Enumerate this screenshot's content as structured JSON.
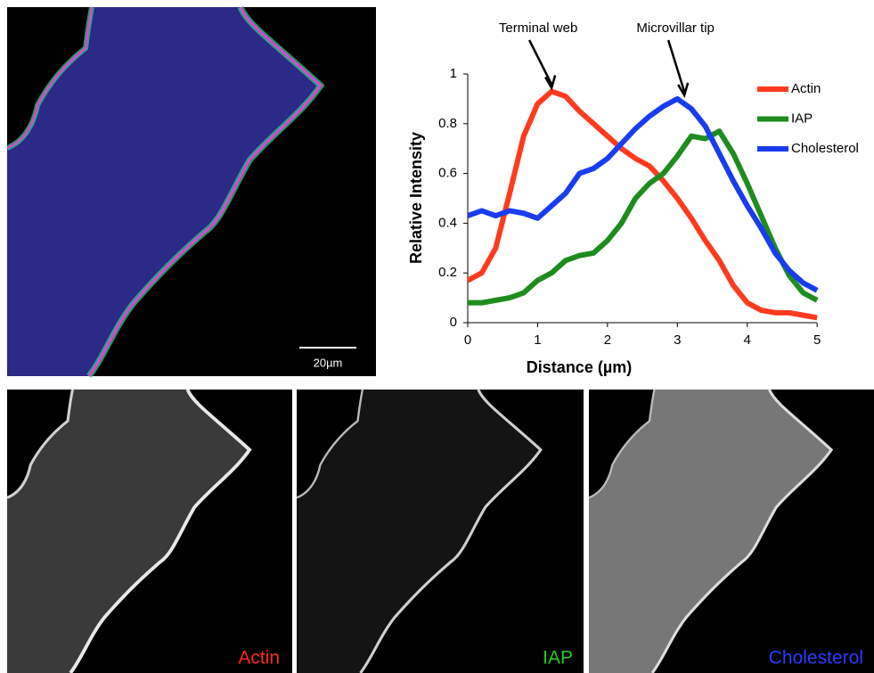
{
  "chart_data": {
    "type": "line",
    "x_label": "Distance (µm)",
    "y_label": "Relative Intensity",
    "x": [
      0,
      0.2,
      0.4,
      0.6,
      0.8,
      1,
      1.2,
      1.4,
      1.6,
      1.8,
      2,
      2.2,
      2.4,
      2.6,
      2.8,
      3,
      3.2,
      3.4,
      3.6,
      3.8,
      4,
      4.2,
      4.4,
      4.6,
      4.8,
      5
    ],
    "series": [
      {
        "name": "Actin",
        "color": "#ff3b1f",
        "values": [
          0.17,
          0.2,
          0.3,
          0.52,
          0.75,
          0.88,
          0.93,
          0.91,
          0.85,
          0.8,
          0.75,
          0.7,
          0.66,
          0.63,
          0.57,
          0.5,
          0.42,
          0.33,
          0.25,
          0.15,
          0.08,
          0.05,
          0.04,
          0.04,
          0.03,
          0.02
        ]
      },
      {
        "name": "IAP",
        "color": "#1e8c1e",
        "values": [
          0.08,
          0.08,
          0.09,
          0.1,
          0.12,
          0.17,
          0.2,
          0.25,
          0.27,
          0.28,
          0.33,
          0.4,
          0.5,
          0.56,
          0.6,
          0.67,
          0.75,
          0.74,
          0.77,
          0.68,
          0.56,
          0.43,
          0.3,
          0.19,
          0.12,
          0.09
        ]
      },
      {
        "name": "Cholesterol",
        "color": "#1a3cf0",
        "values": [
          0.43,
          0.45,
          0.43,
          0.45,
          0.44,
          0.42,
          0.47,
          0.52,
          0.6,
          0.62,
          0.66,
          0.72,
          0.78,
          0.83,
          0.87,
          0.9,
          0.86,
          0.79,
          0.68,
          0.57,
          0.47,
          0.38,
          0.28,
          0.21,
          0.16,
          0.13
        ]
      }
    ],
    "annotations": [
      {
        "text": "Terminal web",
        "x": 1.2,
        "y": 0.93
      },
      {
        "text": "Microvillar tip",
        "x": 3.1,
        "y": 0.9
      }
    ],
    "xlim": [
      0,
      5.1
    ],
    "ylim": [
      0,
      1
    ],
    "xticks": [
      0,
      1,
      2,
      3,
      4,
      5
    ],
    "yticks": [
      0,
      0.2,
      0.4,
      0.6,
      0.8,
      1
    ]
  },
  "images": {
    "scale_bar": "20µm",
    "panels": [
      "Actin",
      "IAP",
      "Cholesterol"
    ],
    "panel_colors": [
      "#ff2a1a",
      "#22cc22",
      "#2a3cff"
    ]
  }
}
